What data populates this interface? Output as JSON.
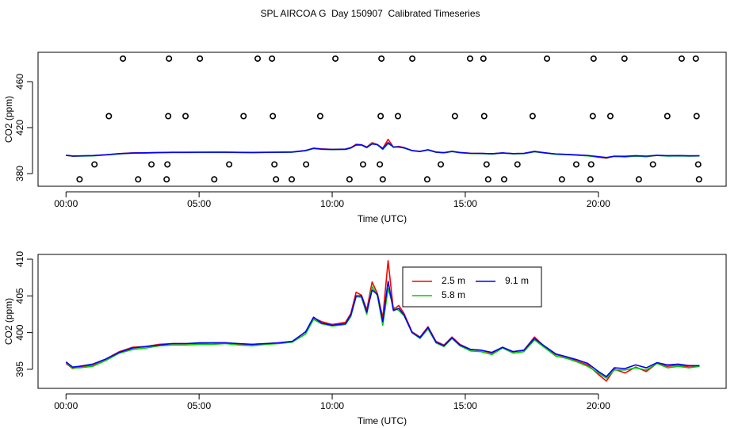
{
  "title": "SPL AIRCOA G  Day 150907  Calibrated Timeseries",
  "chart_data": [
    {
      "type": "line",
      "xlabel": "Time (UTC)",
      "ylabel": "CO2 (ppm)",
      "xlim": [
        -1.05,
        24.8
      ],
      "ylim": [
        369,
        485.5
      ],
      "xticks": [
        {
          "value": 0,
          "label": "00:00"
        },
        {
          "value": 5,
          "label": "05:00"
        },
        {
          "value": 10,
          "label": "10:00"
        },
        {
          "value": 15,
          "label": "15:00"
        },
        {
          "value": 20,
          "label": "20:00"
        }
      ],
      "yticks": [
        380,
        420,
        460
      ],
      "x": [
        0,
        0.25,
        0.5,
        1,
        1.5,
        2,
        2.5,
        3,
        3.5,
        4,
        4.5,
        5,
        5.5,
        6,
        6.5,
        7,
        7.5,
        8,
        8.5,
        9,
        9.3,
        9.6,
        10,
        10.5,
        10.7,
        10.9,
        11.1,
        11.3,
        11.5,
        11.7,
        11.9,
        12.1,
        12.3,
        12.5,
        12.7,
        13,
        13.3,
        13.6,
        13.9,
        14.2,
        14.5,
        14.8,
        15.2,
        15.6,
        16,
        16.4,
        16.8,
        17.2,
        17.6,
        18,
        18.4,
        18.8,
        19.2,
        19.6,
        20,
        20.3,
        20.6,
        21,
        21.4,
        21.8,
        22.2,
        22.6,
        23,
        23.4,
        23.8
      ],
      "series": [
        {
          "type": "line",
          "color": "#ff0000",
          "values": [
            395.8,
            395.1,
            395.3,
            395.6,
            396.4,
            397.4,
            398,
            398.1,
            398.4,
            398.5,
            398.5,
            398.5,
            398.6,
            398.6,
            398.4,
            398.4,
            398.5,
            398.6,
            398.8,
            400.1,
            402,
            401.5,
            401.1,
            401.4,
            402.6,
            405.5,
            405.1,
            403.1,
            406.9,
            405.3,
            402,
            409.8,
            403.1,
            403.7,
            402.6,
            400.1,
            399.4,
            400.8,
            398.8,
            398.3,
            399.4,
            398.4,
            397.7,
            397.6,
            397.2,
            398,
            397.4,
            397.6,
            399.4,
            398,
            397,
            396.7,
            396.1,
            395.6,
            394.3,
            393.4,
            395,
            394.5,
            395.3,
            394.7,
            395.8,
            395.4,
            395.6,
            395.3,
            395.4
          ]
        },
        {
          "type": "line",
          "color": "#00cd00",
          "values": [
            395.9,
            395.2,
            395.2,
            395.4,
            396.2,
            397.2,
            397.7,
            397.9,
            398.2,
            398.3,
            398.3,
            398.4,
            398.4,
            398.5,
            398.3,
            398.2,
            398.4,
            398.5,
            398.7,
            399.8,
            401.8,
            401.2,
            400.9,
            401.1,
            402.2,
            404.9,
            404.8,
            402.5,
            406.3,
            405,
            401,
            406,
            403.5,
            403,
            402.3,
            400,
            399.2,
            400.5,
            398.6,
            398.1,
            399.2,
            398.2,
            397.5,
            397.4,
            397,
            397.9,
            397.2,
            397.4,
            399,
            397.9,
            396.8,
            396.5,
            396,
            395.4,
            394.5,
            393.8,
            394.9,
            394.9,
            395.2,
            394.9,
            395.8,
            395.2,
            395.4,
            395.2,
            395.4
          ]
        },
        {
          "type": "line",
          "color": "#0000ff",
          "values": [
            396,
            395.3,
            395.4,
            395.7,
            396.4,
            397.3,
            397.9,
            398.1,
            398.3,
            398.5,
            398.5,
            398.6,
            398.6,
            398.6,
            398.5,
            398.4,
            398.5,
            398.6,
            398.8,
            400.1,
            402.1,
            401.3,
            401,
            401.2,
            402.4,
            405,
            405,
            402.8,
            405.8,
            405.2,
            401.5,
            407,
            403,
            403.3,
            402.4,
            400,
            399.3,
            400.7,
            398.7,
            398.2,
            399.3,
            398.3,
            397.7,
            397.6,
            397.3,
            398,
            397.4,
            397.6,
            399.2,
            398.1,
            397.1,
            396.7,
            396.3,
            395.8,
            394.7,
            394,
            395.2,
            395.1,
            395.6,
            395.2,
            395.9,
            395.6,
            395.7,
            395.5,
            395.5
          ]
        },
        {
          "type": "scatter",
          "color": "#000000",
          "x": [
            2.14,
            3.87,
            5.03,
            7.2,
            7.74,
            10.12,
            11.85,
            13.01,
            15.18,
            15.68,
            18.07,
            19.82,
            20.98,
            23.13,
            23.66,
            1.61,
            3.84,
            4.49,
            6.67,
            7.77,
            9.55,
            11.82,
            12.47,
            14.61,
            15.71,
            17.53,
            19.79,
            20.45,
            22.59,
            23.69,
            1.07,
            3.21,
            3.81,
            6.13,
            7.83,
            9.02,
            11.16,
            11.79,
            14.08,
            15.8,
            16.96,
            19.17,
            19.73,
            22.05,
            23.75,
            0.51,
            2.71,
            3.78,
            5.57,
            7.89,
            8.48,
            10.65,
            11.9,
            13.57,
            15.86,
            16.46,
            18.63,
            19.7,
            21.52,
            23.78
          ],
          "values": [
            480,
            480,
            480,
            480,
            480,
            480,
            480,
            480,
            480,
            480,
            480,
            480,
            480,
            480,
            480,
            430,
            430,
            430,
            430,
            430,
            430,
            430,
            430,
            430,
            430,
            430,
            430,
            430,
            430,
            430,
            388,
            388,
            388,
            388,
            388,
            388,
            388,
            388,
            388,
            388,
            388,
            388,
            388,
            388,
            388,
            375,
            375,
            375,
            375,
            375,
            375,
            375,
            375,
            375,
            375,
            375,
            375,
            375,
            375,
            375
          ]
        }
      ]
    },
    {
      "type": "line",
      "xlabel": "Time (UTC)",
      "ylabel": "CO2 (ppm)",
      "legend": "top",
      "xlim": [
        -1.05,
        24.8
      ],
      "ylim": [
        392.4,
        410.65
      ],
      "xticks": [
        {
          "value": 0,
          "label": "00:00"
        },
        {
          "value": 5,
          "label": "05:00"
        },
        {
          "value": 10,
          "label": "10:00"
        },
        {
          "value": 15,
          "label": "15:00"
        },
        {
          "value": 20,
          "label": "20:00"
        }
      ],
      "yticks": [
        395,
        400,
        405,
        410
      ],
      "x": [
        0,
        0.25,
        0.5,
        1,
        1.5,
        2,
        2.5,
        3,
        3.5,
        4,
        4.5,
        5,
        5.5,
        6,
        6.5,
        7,
        7.5,
        8,
        8.5,
        9,
        9.3,
        9.6,
        10,
        10.5,
        10.7,
        10.9,
        11.1,
        11.3,
        11.5,
        11.7,
        11.9,
        12.1,
        12.3,
        12.5,
        12.7,
        13,
        13.3,
        13.6,
        13.9,
        14.2,
        14.5,
        14.8,
        15.2,
        15.6,
        16,
        16.4,
        16.8,
        17.2,
        17.6,
        18,
        18.4,
        18.8,
        19.2,
        19.6,
        20,
        20.3,
        20.6,
        21,
        21.4,
        21.8,
        22.2,
        22.6,
        23,
        23.4,
        23.8
      ],
      "series": [
        {
          "type": "line",
          "name": "2.5 m",
          "color": "#ff0000",
          "values": [
            395.8,
            395.1,
            395.3,
            395.6,
            396.4,
            397.4,
            398,
            398.1,
            398.4,
            398.5,
            398.5,
            398.5,
            398.6,
            398.6,
            398.4,
            398.4,
            398.5,
            398.6,
            398.8,
            400.1,
            402,
            401.5,
            401.1,
            401.4,
            402.6,
            405.5,
            405.1,
            403.1,
            406.9,
            405.3,
            402,
            409.8,
            403.1,
            403.7,
            402.6,
            400.1,
            399.4,
            400.8,
            398.8,
            398.3,
            399.4,
            398.4,
            397.7,
            397.6,
            397.2,
            398,
            397.4,
            397.6,
            399.4,
            398,
            397,
            396.7,
            396.1,
            395.6,
            394.3,
            393.4,
            395,
            394.5,
            395.3,
            394.7,
            395.8,
            395.4,
            395.6,
            395.3,
            395.4
          ]
        },
        {
          "type": "line",
          "name": "5.8 m",
          "color": "#00cd00",
          "values": [
            395.9,
            395.2,
            395.2,
            395.4,
            396.2,
            397.2,
            397.7,
            397.9,
            398.2,
            398.3,
            398.3,
            398.4,
            398.4,
            398.5,
            398.3,
            398.2,
            398.4,
            398.5,
            398.7,
            399.8,
            401.8,
            401.2,
            400.9,
            401.1,
            402.2,
            404.9,
            404.8,
            402.5,
            406.3,
            405,
            401,
            406,
            403.5,
            403,
            402.3,
            400,
            399.2,
            400.5,
            398.6,
            398.1,
            399.2,
            398.2,
            397.5,
            397.4,
            397,
            397.9,
            397.2,
            397.4,
            399,
            397.9,
            396.8,
            396.5,
            396,
            395.4,
            394.5,
            393.8,
            394.9,
            394.9,
            395.2,
            394.9,
            395.8,
            395.2,
            395.4,
            395.2,
            395.4
          ]
        },
        {
          "type": "line",
          "name": "9.1 m",
          "color": "#0000ff",
          "values": [
            396,
            395.3,
            395.4,
            395.7,
            396.4,
            397.3,
            397.9,
            398.1,
            398.3,
            398.5,
            398.5,
            398.6,
            398.6,
            398.6,
            398.5,
            398.4,
            398.5,
            398.6,
            398.8,
            400.1,
            402.1,
            401.3,
            401,
            401.2,
            402.4,
            405,
            405,
            402.8,
            405.8,
            405.2,
            401.5,
            407,
            403,
            403.3,
            402.4,
            400,
            399.3,
            400.7,
            398.7,
            398.2,
            399.3,
            398.3,
            397.7,
            397.6,
            397.3,
            398,
            397.4,
            397.6,
            399.2,
            398.1,
            397.1,
            396.7,
            396.3,
            395.8,
            394.7,
            394,
            395.2,
            395.1,
            395.6,
            395.2,
            395.9,
            395.6,
            395.7,
            395.5,
            395.5
          ]
        }
      ]
    }
  ]
}
